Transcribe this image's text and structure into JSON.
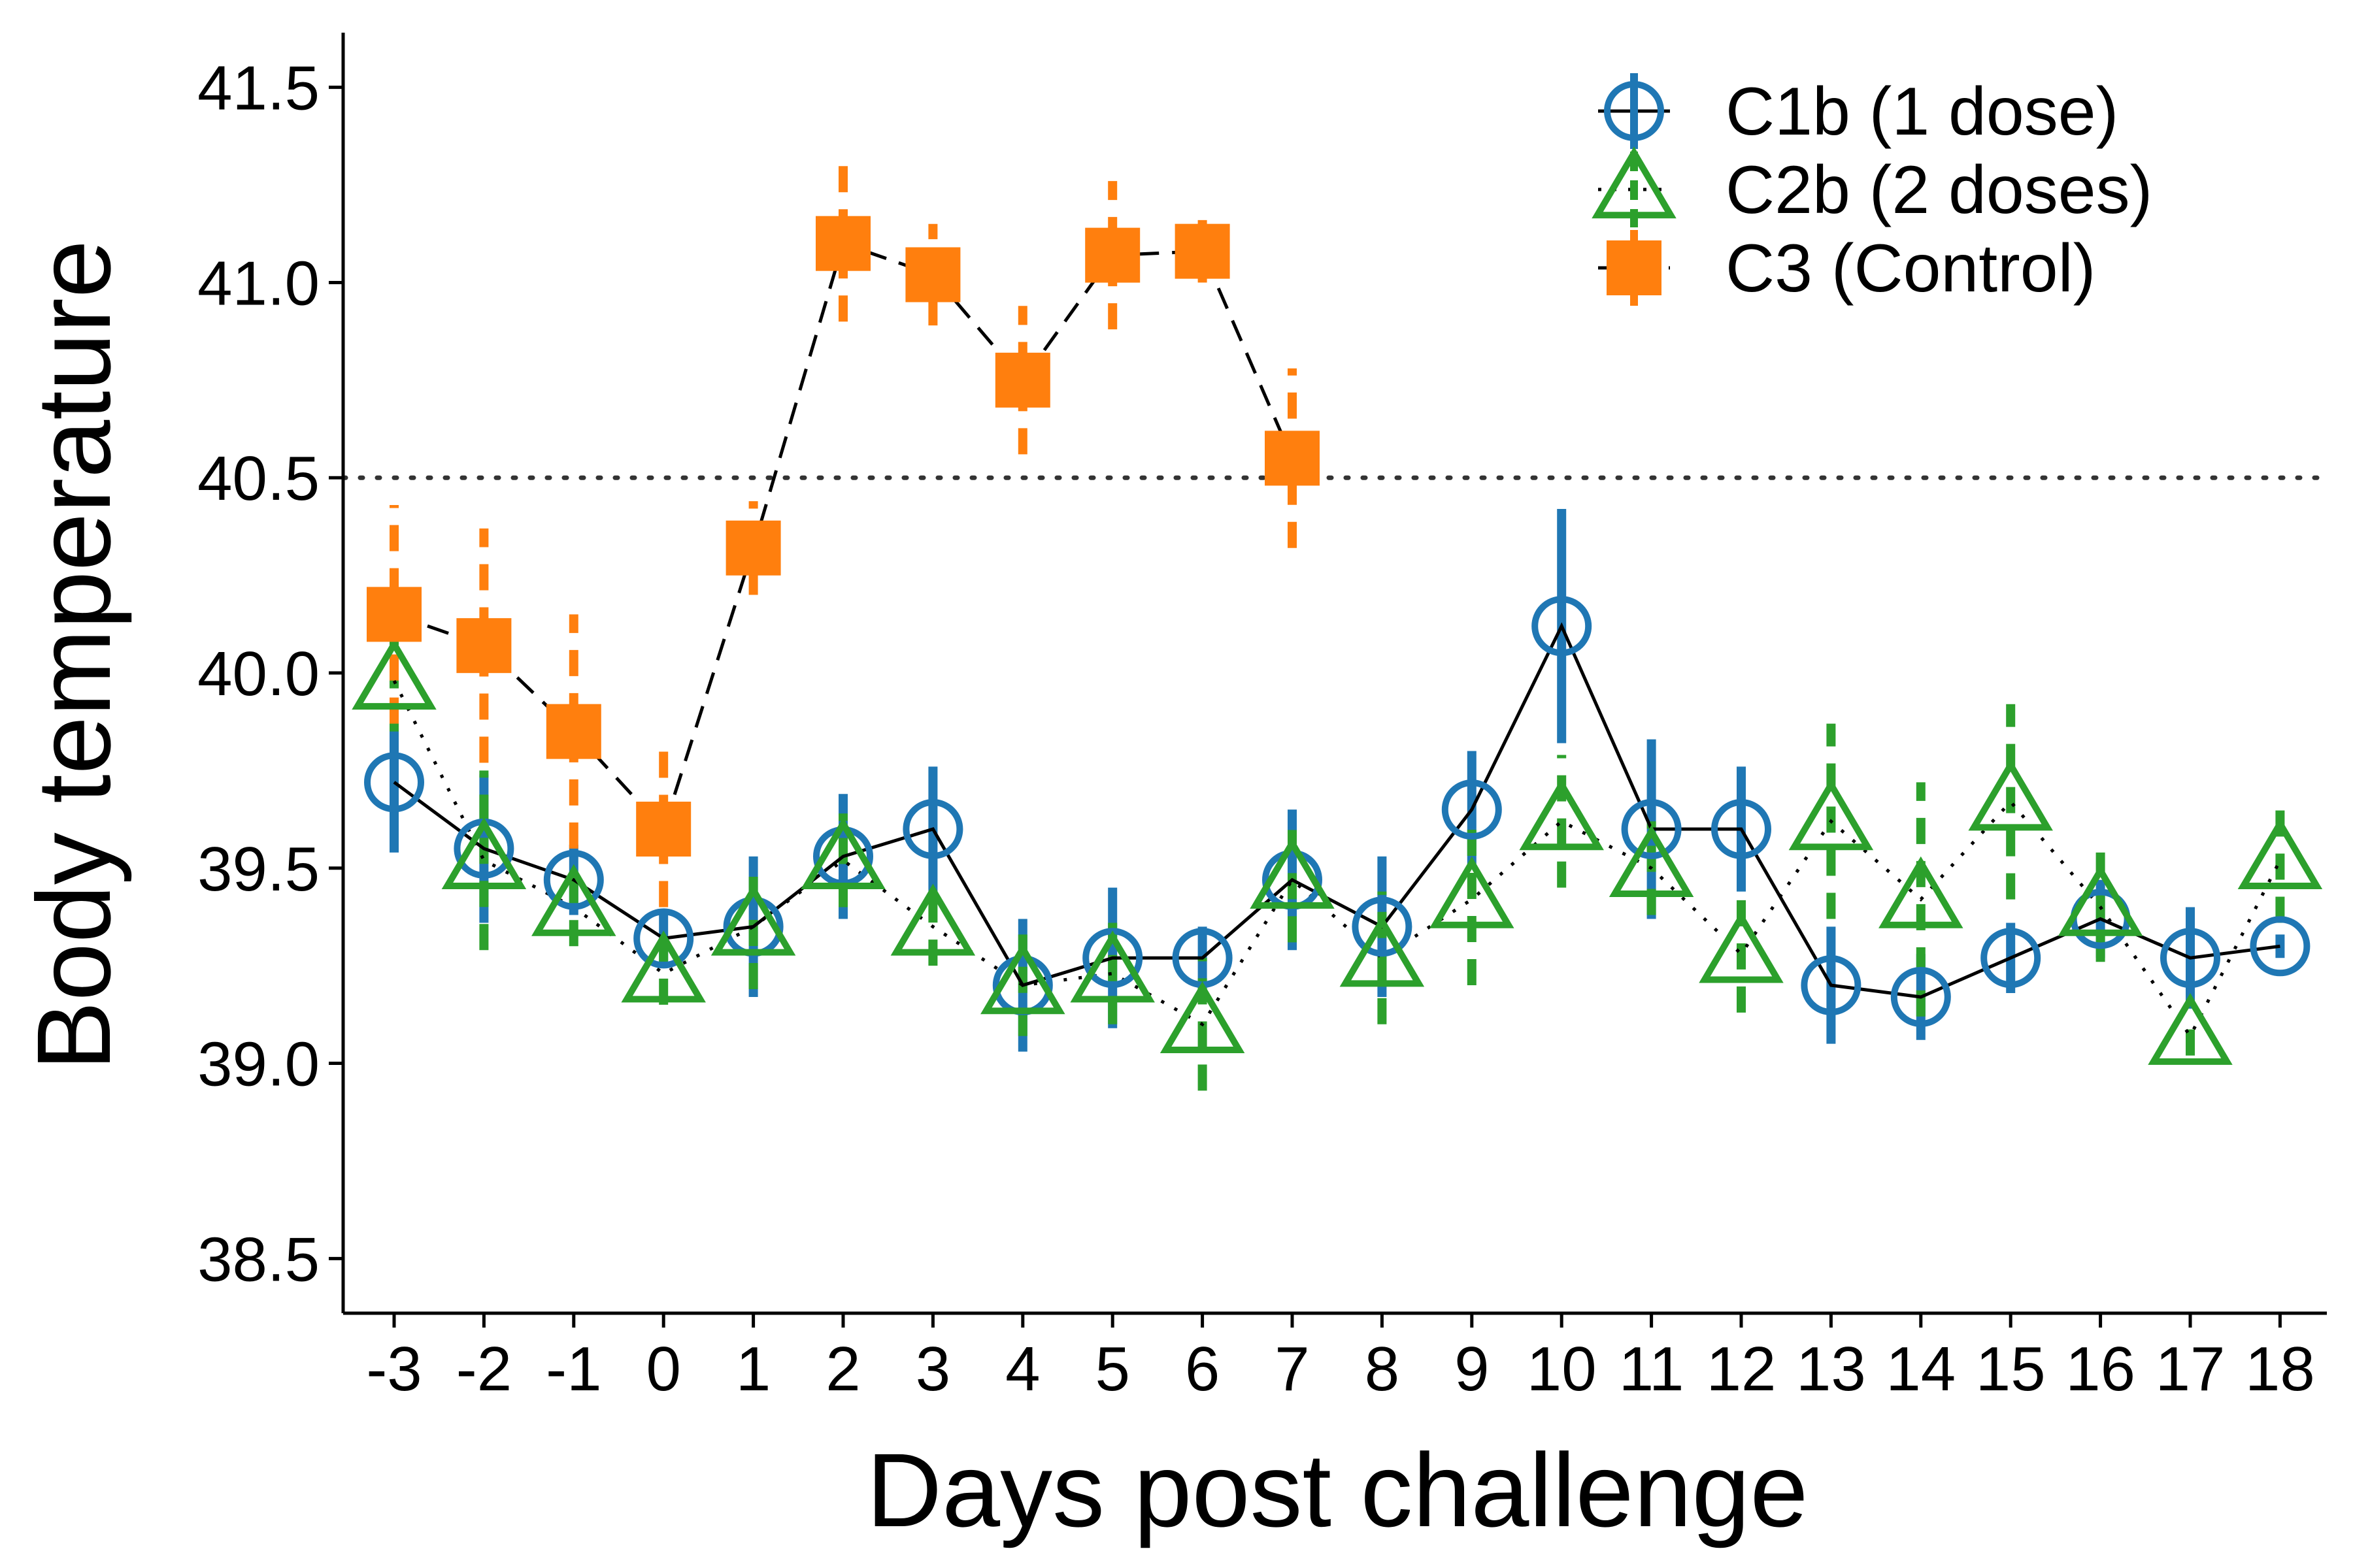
{
  "chart_data": {
    "type": "line",
    "title": "",
    "xlabel": "Days post challenge",
    "ylabel": "Body temperature",
    "x": [
      -3,
      -2,
      -1,
      0,
      1,
      2,
      3,
      4,
      5,
      6,
      7,
      8,
      9,
      10,
      11,
      12,
      13,
      14,
      15,
      16,
      17,
      18
    ],
    "x_tick_labels": [
      "-3",
      "-2",
      "-1",
      "0",
      "1",
      "2",
      "3",
      "4",
      "5",
      "6",
      "7",
      "8",
      "9",
      "10",
      "11",
      "12",
      "13",
      "14",
      "15",
      "16",
      "17",
      "18"
    ],
    "ylim": [
      38.36,
      41.64
    ],
    "y_ticks": [
      38.5,
      39.0,
      39.5,
      40.0,
      40.5,
      41.0,
      41.5
    ],
    "y_tick_labels": [
      "38.5",
      "39.0",
      "39.5",
      "40.0",
      "40.5",
      "41.0",
      "41.5"
    ],
    "reference_line": {
      "y": 40.5,
      "style": "dotted"
    },
    "grid": false,
    "legend_position": "top-right",
    "series": [
      {
        "name": "C1b (1 dose)",
        "color": "#1f77b4",
        "marker": "circle",
        "line_style": "solid",
        "error_style": "solid",
        "x": [
          -3,
          -2,
          -1,
          0,
          1,
          2,
          3,
          4,
          5,
          6,
          7,
          8,
          9,
          10,
          11,
          12,
          13,
          14,
          15,
          16,
          17,
          18
        ],
        "y": [
          39.72,
          39.55,
          39.47,
          39.32,
          39.35,
          39.53,
          39.6,
          39.2,
          39.27,
          39.27,
          39.47,
          39.35,
          39.65,
          40.12,
          39.6,
          39.6,
          39.2,
          39.17,
          39.27,
          39.37,
          39.27,
          39.3
        ],
        "err": [
          0.18,
          0.19,
          0.09,
          0.07,
          0.18,
          0.16,
          0.16,
          0.17,
          0.18,
          0.08,
          0.18,
          0.18,
          0.15,
          0.3,
          0.23,
          0.16,
          0.15,
          0.11,
          0.09,
          0.1,
          0.13,
          0.03
        ]
      },
      {
        "name": "C2b (2 doses)",
        "color": "#2ca02c",
        "marker": "triangle",
        "line_style": "dotted",
        "error_style": "dashed",
        "x": [
          -3,
          -2,
          -1,
          0,
          1,
          2,
          3,
          4,
          5,
          6,
          7,
          8,
          9,
          10,
          11,
          12,
          13,
          14,
          15,
          16,
          17,
          18
        ],
        "y": [
          39.98,
          39.52,
          39.4,
          39.23,
          39.35,
          39.52,
          39.35,
          39.2,
          39.23,
          39.1,
          39.47,
          39.27,
          39.42,
          39.62,
          39.5,
          39.28,
          39.62,
          39.42,
          39.67,
          39.4,
          39.07,
          39.52
        ],
        "err": [
          0.13,
          0.23,
          0.1,
          0.08,
          0.16,
          0.12,
          0.1,
          0.13,
          0.13,
          0.17,
          0.16,
          0.17,
          0.22,
          0.17,
          0.12,
          0.15,
          0.25,
          0.3,
          0.25,
          0.14,
          0.05,
          0.16
        ]
      },
      {
        "name": "C3 (Control)",
        "color": "#ff7f0e",
        "marker": "square",
        "line_style": "dashed",
        "error_style": "dashed",
        "x": [
          -3,
          -2,
          -1,
          0,
          1,
          2,
          3,
          4,
          5,
          6,
          7
        ],
        "y": [
          40.15,
          40.07,
          39.85,
          39.6,
          40.32,
          41.1,
          41.02,
          40.75,
          41.07,
          41.08,
          40.55
        ],
        "err": [
          0.28,
          0.3,
          0.3,
          0.2,
          0.12,
          0.2,
          0.13,
          0.19,
          0.19,
          0.08,
          0.23
        ]
      }
    ]
  }
}
